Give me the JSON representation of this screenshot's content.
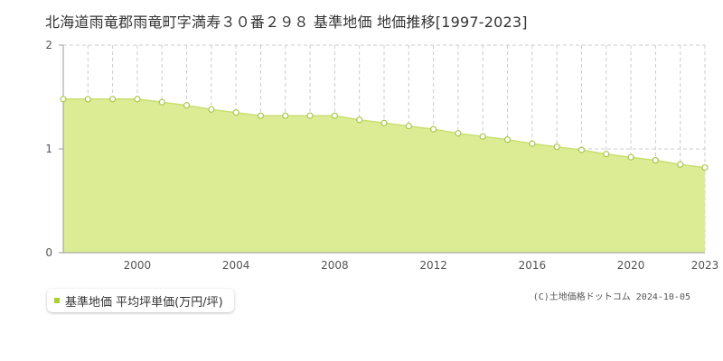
{
  "chart_data": {
    "type": "area",
    "title": "北海道雨竜郡雨竜町字満寿３０番２９８ 基準地価 地価推移[1997-2023]",
    "x": [
      1997,
      1998,
      1999,
      2000,
      2001,
      2002,
      2003,
      2004,
      2005,
      2006,
      2007,
      2008,
      2009,
      2010,
      2011,
      2012,
      2013,
      2014,
      2015,
      2016,
      2017,
      2018,
      2019,
      2020,
      2021,
      2022,
      2023
    ],
    "series": [
      {
        "name": "基準地価 平均坪単価(万円/坪)",
        "values": [
          1.48,
          1.48,
          1.48,
          1.48,
          1.45,
          1.42,
          1.38,
          1.35,
          1.32,
          1.32,
          1.32,
          1.32,
          1.28,
          1.25,
          1.22,
          1.19,
          1.15,
          1.12,
          1.09,
          1.05,
          1.02,
          0.99,
          0.95,
          0.92,
          0.89,
          0.85,
          0.82
        ]
      }
    ],
    "xticks": [
      "2000",
      "2004",
      "2008",
      "2012",
      "2016",
      "2020",
      "2023"
    ],
    "yticks": [
      "0",
      "1",
      "2"
    ],
    "xlim": [
      1997,
      2023
    ],
    "ylim": [
      0,
      2
    ],
    "grid": true,
    "legend": "bottom-left"
  },
  "colors": {
    "fill": "#dcec95",
    "line": "#c8e070",
    "marker_fill": "#ffffff",
    "marker_stroke": "#a8c84a",
    "legend_swatch": "#a8d030",
    "grid": "#cccccc",
    "axis": "#999999"
  },
  "copyright": "(C)土地価格ドットコム 2024-10-05"
}
